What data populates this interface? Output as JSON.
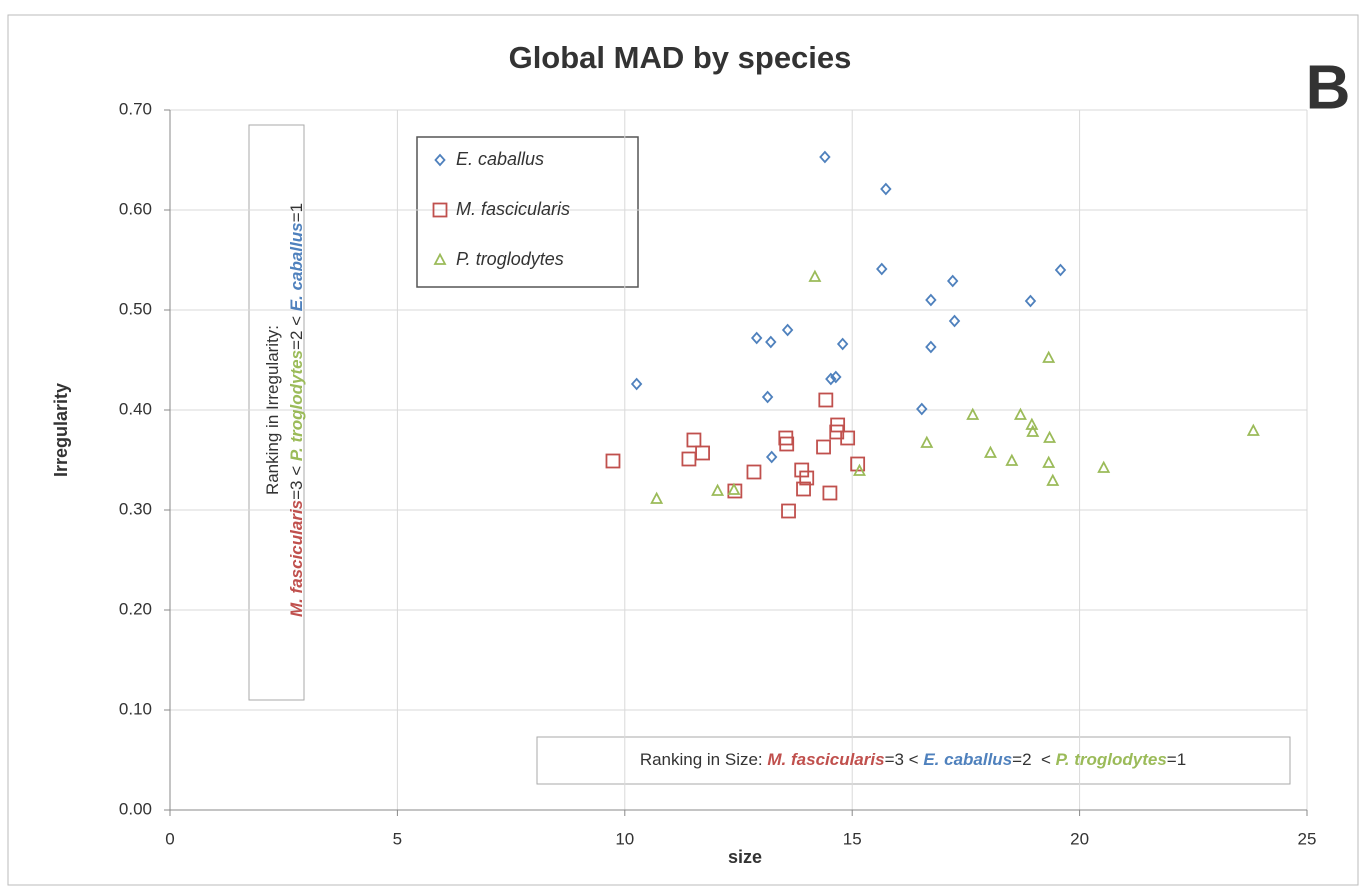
{
  "chart_data": {
    "type": "scatter",
    "title": "Global MAD by species",
    "panel_label": "B",
    "x_label": "size",
    "y_label": "Irregularity",
    "xlim": [
      0,
      25
    ],
    "ylim": [
      0,
      0.7
    ],
    "xticks": [
      0,
      5,
      10,
      15,
      20,
      25
    ],
    "yticks": [
      {
        "value": 0,
        "label": "0.00"
      },
      {
        "value": 0.1,
        "label": "0.10"
      },
      {
        "value": 0.2,
        "label": "0.20"
      },
      {
        "value": 0.3,
        "label": "0.30"
      },
      {
        "value": 0.4,
        "label": "0.40"
      },
      {
        "value": 0.5,
        "label": "0.50"
      },
      {
        "value": 0.6,
        "label": "0.60"
      },
      {
        "value": 0.7,
        "label": "0.70"
      }
    ],
    "grid": true,
    "legend": "top-left",
    "series": [
      {
        "name": "E. caballus",
        "color": "#4f81bd",
        "marker": "diamond",
        "x": [
          14.4,
          15.74,
          15.65,
          17.21,
          16.73,
          18.92,
          19.58,
          17.25,
          16.73,
          14.79,
          12.9,
          13.21,
          13.58,
          10.26,
          13.14,
          14.53,
          14.64,
          16.53,
          13.23
        ],
        "values": [
          0.653,
          0.621,
          0.541,
          0.529,
          0.51,
          0.509,
          0.54,
          0.489,
          0.463,
          0.466,
          0.472,
          0.468,
          0.48,
          0.426,
          0.413,
          0.431,
          0.433,
          0.401,
          0.353
        ]
      },
      {
        "name": "M. fascicularis",
        "color": "#c0504d",
        "marker": "square",
        "x": [
          9.74,
          11.52,
          11.41,
          11.71,
          12.42,
          12.84,
          13.54,
          13.56,
          13.6,
          13.89,
          14.0,
          13.93,
          14.42,
          14.37,
          14.51,
          14.68,
          14.66,
          14.9,
          15.12
        ],
        "values": [
          0.349,
          0.37,
          0.351,
          0.357,
          0.319,
          0.338,
          0.372,
          0.366,
          0.299,
          0.34,
          0.332,
          0.321,
          0.41,
          0.363,
          0.317,
          0.385,
          0.378,
          0.372,
          0.346
        ]
      },
      {
        "name": "P. troglodytes",
        "color": "#9bbb59",
        "marker": "triangle",
        "x": [
          10.7,
          12.04,
          12.4,
          14.18,
          15.16,
          16.64,
          17.65,
          18.04,
          18.51,
          18.7,
          18.95,
          18.97,
          19.32,
          19.34,
          19.32,
          19.41,
          20.53,
          23.82
        ],
        "values": [
          0.311,
          0.319,
          0.32,
          0.533,
          0.339,
          0.367,
          0.395,
          0.357,
          0.349,
          0.395,
          0.385,
          0.378,
          0.452,
          0.372,
          0.347,
          0.329,
          0.342,
          0.379
        ]
      }
    ],
    "annotations": [
      {
        "lines": [
          [
            {
              "text": "Ranking in Size: ",
              "color": "#333333",
              "italic": false
            },
            {
              "text": "M. fascicularis",
              "color": "#c0504d",
              "italic": true
            },
            {
              "text": "=3 < ",
              "color": "#333333",
              "italic": false
            },
            {
              "text": "E. caballus",
              "color": "#4f81bd",
              "italic": true
            },
            {
              "text": "=2  < ",
              "color": "#333333",
              "italic": false
            },
            {
              "text": "P. troglodytes",
              "color": "#9bbb59",
              "italic": true
            },
            {
              "text": "=1",
              "color": "#333333",
              "italic": false
            }
          ]
        ]
      },
      {
        "lines": [
          [
            {
              "text": "Ranking in Irregularity:",
              "color": "#333333",
              "italic": false
            }
          ],
          [
            {
              "text": "M. fascicularis",
              "color": "#c0504d",
              "italic": true
            },
            {
              "text": "=3 < ",
              "color": "#333333",
              "italic": false
            },
            {
              "text": "P. troglodytes",
              "color": "#9bbb59",
              "italic": true
            },
            {
              "text": "=2 < ",
              "color": "#333333",
              "italic": false
            },
            {
              "text": "E. caballus",
              "color": "#4f81bd",
              "italic": true
            },
            {
              "text": "=1",
              "color": "#333333",
              "italic": false
            }
          ]
        ]
      }
    ]
  }
}
